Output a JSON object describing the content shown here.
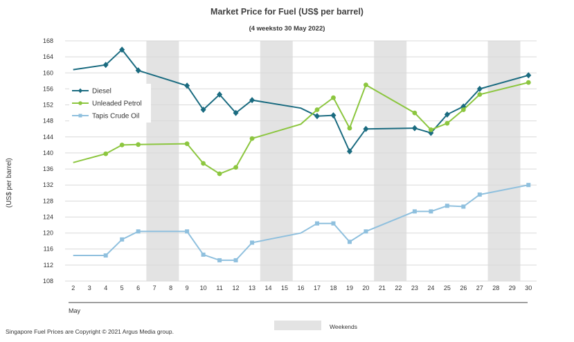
{
  "chart_data": {
    "type": "line",
    "title": "Market Price for Fuel (US$ per barrel)",
    "subtitle": "(4 weeksto 30 May 2022)",
    "ylabel": "(US$ per barrel)",
    "xlabel": "May",
    "ylim": [
      108,
      168
    ],
    "ytick_step": 4,
    "x": [
      2,
      3,
      4,
      5,
      6,
      7,
      8,
      9,
      10,
      11,
      12,
      13,
      14,
      15,
      16,
      17,
      18,
      19,
      20,
      21,
      22,
      23,
      24,
      25,
      26,
      27,
      28,
      29,
      30
    ],
    "weekends": [
      [
        7,
        8
      ],
      [
        14,
        15
      ],
      [
        21,
        22
      ],
      [
        28,
        29
      ]
    ],
    "legend": {
      "weekends_label": "Weekends"
    },
    "series": [
      {
        "name": "Diesel",
        "color": "#1a6b80",
        "marker": "diamond",
        "points": [
          [
            2,
            160.8
          ],
          [
            4,
            162.0
          ],
          [
            5,
            165.8
          ],
          [
            6,
            160.6
          ],
          [
            9,
            156.8
          ],
          [
            10,
            150.8
          ],
          [
            11,
            154.6
          ],
          [
            12,
            150.0
          ],
          [
            13,
            153.2
          ],
          [
            16,
            151.2
          ],
          [
            17,
            149.2
          ],
          [
            18,
            149.4
          ],
          [
            19,
            140.4
          ],
          [
            20,
            146.0
          ],
          [
            23,
            146.2
          ],
          [
            24,
            145.0
          ],
          [
            25,
            149.6
          ],
          [
            26,
            151.6
          ],
          [
            27,
            156.0
          ],
          [
            30,
            159.4
          ]
        ],
        "marked": [
          4,
          5,
          6,
          9,
          10,
          11,
          12,
          13,
          17,
          18,
          19,
          20,
          23,
          24,
          25,
          26,
          27,
          30
        ]
      },
      {
        "name": "Unleaded Petrol",
        "color": "#8cc63f",
        "marker": "circle",
        "points": [
          [
            2,
            137.6
          ],
          [
            4,
            139.8
          ],
          [
            5,
            142.0
          ],
          [
            6,
            142.1
          ],
          [
            9,
            142.3
          ],
          [
            10,
            137.4
          ],
          [
            11,
            134.8
          ],
          [
            12,
            136.4
          ],
          [
            13,
            143.6
          ],
          [
            16,
            147.2
          ],
          [
            17,
            150.8
          ],
          [
            18,
            153.8
          ],
          [
            19,
            146.2
          ],
          [
            20,
            157.0
          ],
          [
            23,
            150.0
          ],
          [
            24,
            145.8
          ],
          [
            25,
            147.4
          ],
          [
            26,
            150.8
          ],
          [
            27,
            154.6
          ],
          [
            30,
            157.6
          ]
        ],
        "marked": [
          4,
          5,
          6,
          9,
          10,
          11,
          12,
          13,
          17,
          18,
          19,
          20,
          23,
          24,
          25,
          26,
          27,
          30
        ]
      },
      {
        "name": "Tapis Crude Oil",
        "color": "#8fc0de",
        "marker": "square",
        "points": [
          [
            2,
            114.4
          ],
          [
            4,
            114.4
          ],
          [
            5,
            118.4
          ],
          [
            6,
            120.4
          ],
          [
            9,
            120.4
          ],
          [
            10,
            114.6
          ],
          [
            11,
            113.2
          ],
          [
            12,
            113.2
          ],
          [
            13,
            117.6
          ],
          [
            16,
            120.0
          ],
          [
            17,
            122.4
          ],
          [
            18,
            122.4
          ],
          [
            19,
            117.8
          ],
          [
            20,
            120.4
          ],
          [
            23,
            125.4
          ],
          [
            24,
            125.4
          ],
          [
            25,
            126.8
          ],
          [
            26,
            126.6
          ],
          [
            27,
            129.6
          ],
          [
            30,
            132.0
          ]
        ],
        "marked": [
          4,
          5,
          6,
          9,
          10,
          11,
          12,
          13,
          17,
          18,
          19,
          20,
          23,
          24,
          25,
          26,
          27,
          30
        ]
      }
    ]
  },
  "footer": {
    "copyright": "Singapore Fuel Prices are Copyright © 2021 Argus Media group."
  }
}
